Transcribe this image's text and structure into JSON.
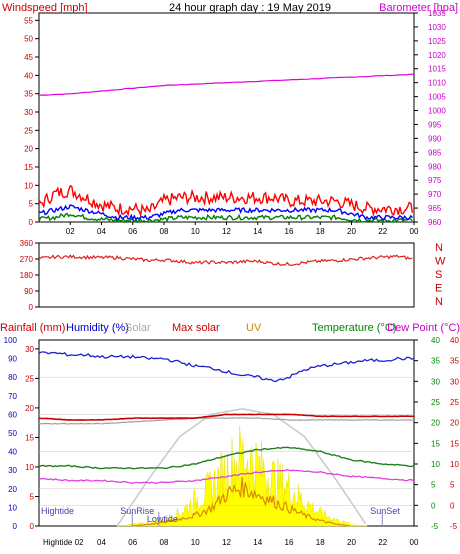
{
  "title": "24 hour graph day : 19 May 2019",
  "colors": {
    "wind_axis": "#cc0000",
    "baro_axis": "#cc00cc",
    "grid": "#c8c8c8",
    "wind_gust": "#ff0000",
    "wind_avg": "#0000ff",
    "wind_low": "#008000",
    "baro_line": "#e000e0",
    "dir_line": "#dd2222",
    "rain_axis": "#cc0000",
    "humidity_axis": "#0000cc",
    "solar_axis": "#aaaaaa",
    "maxsolar_axis": "#cc0000",
    "uv_axis": "#cc8800",
    "temp_axis": "#008800",
    "dew_axis": "#cc00cc",
    "humidity_line": "#2020d0",
    "temp_line": "#208020",
    "dew_line": "#e040e0",
    "maxsolar_line": "#cc0000",
    "solar_line": "#a0a0a0",
    "uv_line": "#dd8800",
    "solar_fill": "#ffff00",
    "sun_curve": "#c8c8c8",
    "tide_text": "#4444aa"
  },
  "chart_data": [
    {
      "type": "line",
      "name": "wind_baro",
      "left_axis_label": "Windspeed [mph]",
      "right_axis_label": "Barometer [hpa]",
      "left_ticks": [
        "0",
        "5",
        "10",
        "15",
        "20",
        "25",
        "30",
        "35",
        "40",
        "45",
        "50",
        "55"
      ],
      "right_ticks": [
        "960",
        "965",
        "970",
        "975",
        "980",
        "985",
        "990",
        "995",
        "1000",
        "1005",
        "1010",
        "1015",
        "1020",
        "1025",
        "1030",
        "1035"
      ],
      "ylim_left": [
        0,
        57
      ],
      "ylim_right": [
        960,
        1035
      ],
      "x_range_hours": [
        0,
        24
      ],
      "x_tick_labels": [
        "02",
        "04",
        "06",
        "08",
        "10",
        "12",
        "14",
        "16",
        "18",
        "20",
        "22",
        "00"
      ],
      "x_tick_hours": [
        2,
        4,
        6,
        8,
        10,
        12,
        14,
        16,
        18,
        20,
        22,
        24
      ],
      "series": [
        {
          "key": "gust",
          "hours": [
            0,
            1,
            2,
            3,
            4,
            5,
            6,
            7,
            8,
            9,
            10,
            11,
            12,
            13,
            14,
            15,
            16,
            17,
            18,
            19,
            20,
            21,
            22,
            23,
            24
          ],
          "values": [
            4,
            7,
            8,
            6,
            4,
            3,
            3,
            2,
            5,
            6,
            6,
            6,
            6,
            6,
            6,
            6,
            5,
            5,
            5,
            5,
            4,
            3,
            3,
            3,
            3
          ]
        },
        {
          "key": "avg",
          "hours": [
            0,
            1,
            2,
            3,
            4,
            5,
            6,
            7,
            8,
            9,
            10,
            11,
            12,
            13,
            14,
            15,
            16,
            17,
            18,
            19,
            20,
            21,
            22,
            23,
            24
          ],
          "values": [
            2,
            3,
            4,
            3,
            2,
            1,
            1,
            1,
            2,
            3,
            3,
            3,
            3,
            3,
            3,
            3,
            3,
            3,
            3,
            3,
            2,
            1,
            1,
            1,
            1
          ]
        },
        {
          "key": "low",
          "hours": [
            0,
            1,
            2,
            3,
            4,
            5,
            6,
            7,
            8,
            9,
            10,
            11,
            12,
            13,
            14,
            15,
            16,
            17,
            18,
            19,
            20,
            21,
            22,
            23,
            24
          ],
          "values": [
            0.5,
            1,
            2,
            1,
            0.5,
            0.2,
            0.2,
            0.2,
            0.5,
            1,
            1,
            1,
            1,
            1,
            1,
            1,
            1,
            1,
            1,
            1,
            0.5,
            0.2,
            0.2,
            0.2,
            0.2
          ]
        },
        {
          "key": "baro",
          "axis": "right",
          "hours": [
            0,
            2,
            4,
            6,
            8,
            10,
            12,
            14,
            16,
            18,
            20,
            22,
            24
          ],
          "values": [
            1005.5,
            1006,
            1007,
            1008,
            1009,
            1009.5,
            1010,
            1010.5,
            1011,
            1011.5,
            1012,
            1012.5,
            1013
          ]
        }
      ]
    },
    {
      "type": "line",
      "name": "wind_direction",
      "left_ticks": [
        "0",
        "90",
        "180",
        "270",
        "360"
      ],
      "right_letters": [
        "N",
        "W",
        "S",
        "E",
        "N"
      ],
      "ylim": [
        0,
        360
      ],
      "series": [
        {
          "key": "dir",
          "hours": [
            0,
            1,
            2,
            3,
            4,
            5,
            6,
            7,
            8,
            9,
            10,
            11,
            12,
            13,
            14,
            15,
            16,
            17,
            18,
            19,
            20,
            21,
            22,
            23,
            24
          ],
          "values": [
            272,
            282,
            283,
            280,
            278,
            278,
            270,
            262,
            265,
            258,
            248,
            252,
            250,
            255,
            258,
            245,
            240,
            250,
            258,
            262,
            268,
            275,
            280,
            285,
            268
          ]
        }
      ]
    },
    {
      "type": "line",
      "name": "temp_solar",
      "axis_labels": {
        "rainfall": "Rainfall (mm)",
        "humidity": "Humidity (%)",
        "solar": "Solar",
        "max_solar": "Max solar",
        "uv": "UV",
        "temperature": "Temperature (°C)",
        "dew_point": "Dew Point (°C)"
      },
      "rain_ticks": [
        "0",
        "5",
        "10",
        "15",
        "20",
        "25",
        "30"
      ],
      "humidity_ticks": [
        "0",
        "10",
        "20",
        "30",
        "40",
        "50",
        "60",
        "70",
        "80",
        "90",
        "100"
      ],
      "temp_ticks": [
        "-5",
        "0",
        "5",
        "10",
        "15",
        "20",
        "25",
        "30",
        "35",
        "40"
      ],
      "dew_ticks": [
        "-5",
        "0",
        "5",
        "10",
        "15",
        "20",
        "25",
        "30",
        "35",
        "40"
      ],
      "ylim_rain": [
        0,
        31.5
      ],
      "ylim_humidity": [
        0,
        100
      ],
      "ylim_temp": [
        -5,
        40
      ],
      "x_tick_labels": [
        "02",
        "04",
        "06",
        "08",
        "10",
        "12",
        "14",
        "16",
        "18",
        "20",
        "22",
        "00"
      ],
      "annotations": [
        {
          "text": "Hightide",
          "hour": 0.2
        },
        {
          "text": "SunRise",
          "hour": 5.2
        },
        {
          "text": "Lowtide",
          "hour": 6.9
        },
        {
          "text": "SunSet",
          "hour": 21.2
        }
      ],
      "bottom_labels": [
        "Hightide 02",
        "04",
        "06",
        "08",
        "10",
        "12",
        "14",
        "16",
        "18",
        "20",
        "22",
        "00"
      ],
      "series": [
        {
          "key": "humidity",
          "axis": "humidity",
          "hours": [
            0,
            1,
            2,
            3,
            4,
            5,
            6,
            7,
            8,
            9,
            10,
            11,
            12,
            13,
            14,
            15,
            16,
            17,
            18,
            19,
            20,
            21,
            22,
            23,
            24
          ],
          "values": [
            93,
            93,
            92,
            92,
            91,
            91,
            91,
            90,
            90,
            88,
            86,
            85,
            83,
            81,
            80,
            78,
            80,
            84,
            86,
            87,
            88,
            89,
            89,
            90,
            90
          ]
        },
        {
          "key": "max_solar",
          "axis": "humidity",
          "hours": [
            0,
            2,
            4,
            6,
            8,
            10,
            12,
            14,
            16,
            18,
            20,
            22,
            24
          ],
          "values": [
            58,
            57,
            57,
            58,
            58,
            58,
            60,
            60,
            60,
            59,
            59,
            59,
            59
          ]
        },
        {
          "key": "solar",
          "axis": "humidity",
          "hours": [
            0,
            2,
            4,
            6,
            8,
            10,
            12,
            14,
            16,
            18,
            20,
            22,
            24
          ],
          "values": [
            55,
            55,
            55,
            56,
            57,
            58,
            58,
            58,
            57,
            57,
            57,
            57,
            57
          ]
        },
        {
          "key": "temperature",
          "axis": "temp",
          "hours": [
            0,
            2,
            4,
            6,
            8,
            10,
            12,
            14,
            16,
            18,
            20,
            22,
            24
          ],
          "values": [
            9.5,
            9.5,
            9,
            9,
            9,
            10,
            12,
            13.5,
            14,
            13,
            11,
            10,
            9.5
          ]
        },
        {
          "key": "dew_point",
          "axis": "temp",
          "hours": [
            0,
            2,
            4,
            6,
            8,
            10,
            12,
            14,
            16,
            18,
            20,
            22,
            24
          ],
          "values": [
            6.5,
            6,
            6,
            5.5,
            5.5,
            6,
            7,
            8,
            8.5,
            8,
            7,
            6.5,
            6
          ]
        },
        {
          "key": "solar_fill",
          "axis": "humidity",
          "hours": [
            5,
            6,
            7,
            8,
            9,
            10,
            11,
            12,
            13,
            14,
            15,
            16,
            17,
            18,
            19,
            20,
            21
          ],
          "values": [
            0,
            1,
            2,
            4,
            8,
            16,
            24,
            35,
            45,
            38,
            30,
            24,
            15,
            8,
            4,
            1,
            0
          ]
        },
        {
          "key": "uv",
          "axis": "humidity",
          "hours": [
            6,
            8,
            10,
            11,
            12,
            13,
            14,
            15,
            16,
            17,
            18,
            19,
            20
          ],
          "values": [
            0,
            2,
            6,
            10,
            18,
            22,
            18,
            14,
            10,
            6,
            3,
            1,
            0
          ]
        },
        {
          "key": "sun_curve",
          "axis": "humidity",
          "hours": [
            5,
            7,
            9,
            11,
            13,
            15,
            17,
            19,
            21
          ],
          "values": [
            0,
            25,
            48,
            60,
            63,
            60,
            48,
            25,
            0
          ]
        }
      ]
    }
  ]
}
